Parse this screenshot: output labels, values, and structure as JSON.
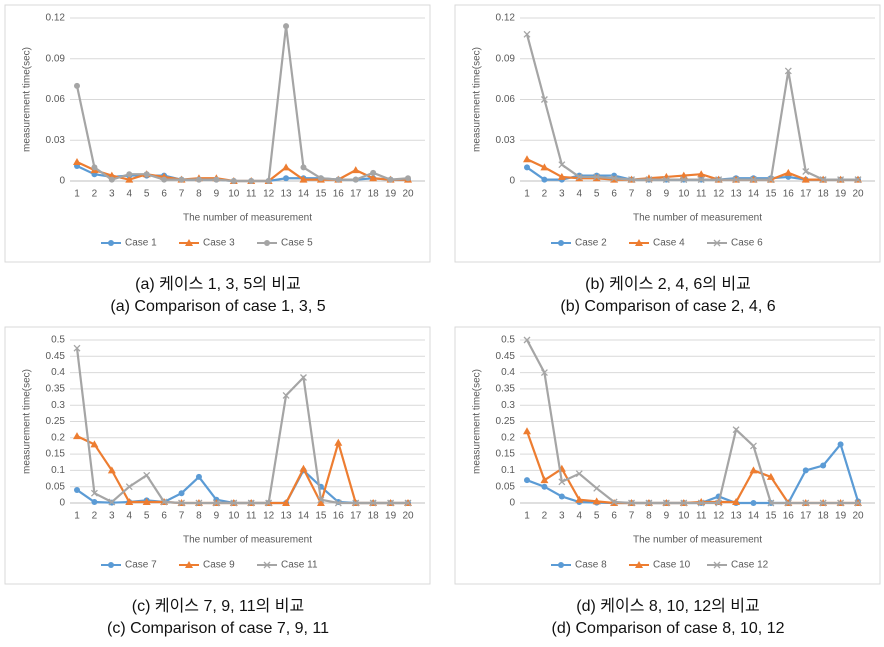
{
  "chart_data": [
    {
      "type": "line",
      "caption_ko": "(a) 케이스 1, 3, 5의 비교",
      "caption_en": "(a) Comparison of case 1, 3, 5",
      "x_label": "The number of measurement",
      "y_label": "measurement time(sec)",
      "categories": [
        1,
        2,
        3,
        4,
        5,
        6,
        7,
        8,
        9,
        10,
        11,
        12,
        13,
        14,
        15,
        16,
        17,
        18,
        19,
        20
      ],
      "ylim": [
        0,
        0.12
      ],
      "yticks": [
        0,
        0.03,
        0.06,
        0.09,
        0.12
      ],
      "grid": true,
      "legend": "bottom",
      "series": [
        {
          "name": "Case 1",
          "color": "#5b9bd5",
          "marker": "circle",
          "values": [
            0.011,
            0.005,
            0.003,
            0.004,
            0.004,
            0.004,
            0.001,
            0.001,
            0.001,
            0,
            0,
            0,
            0.002,
            0.002,
            0.002,
            0.001,
            0.001,
            0.002,
            0.001,
            0.001
          ]
        },
        {
          "name": "Case 3",
          "color": "#ed7d31",
          "marker": "triangle",
          "values": [
            0.014,
            0.008,
            0.004,
            0.001,
            0.005,
            0.003,
            0.001,
            0.002,
            0.002,
            0,
            0,
            0,
            0.01,
            0.001,
            0.001,
            0.001,
            0.008,
            0.002,
            0.001,
            0.001
          ]
        },
        {
          "name": "Case 5",
          "color": "#a5a5a5",
          "marker": "circle",
          "values": [
            0.07,
            0.01,
            0.001,
            0.005,
            0.005,
            0.001,
            0.001,
            0.001,
            0.001,
            0,
            0,
            0,
            0.114,
            0.01,
            0.002,
            0.001,
            0.001,
            0.006,
            0.001,
            0.002
          ]
        }
      ]
    },
    {
      "type": "line",
      "caption_ko": "(b) 케이스 2, 4, 6의 비교",
      "caption_en": "(b) Comparison of case 2, 4, 6",
      "x_label": "The number of measurement",
      "y_label": "measurement time(sec)",
      "categories": [
        1,
        2,
        3,
        4,
        5,
        6,
        7,
        8,
        9,
        10,
        11,
        12,
        13,
        14,
        15,
        16,
        17,
        18,
        19,
        20
      ],
      "ylim": [
        0,
        0.12
      ],
      "yticks": [
        0,
        0.03,
        0.06,
        0.09,
        0.12
      ],
      "grid": true,
      "legend": "bottom",
      "series": [
        {
          "name": "Case 2",
          "color": "#5b9bd5",
          "marker": "circle",
          "values": [
            0.01,
            0.001,
            0.001,
            0.004,
            0.004,
            0.004,
            0.001,
            0.001,
            0.001,
            0.001,
            0.001,
            0.001,
            0.002,
            0.002,
            0.002,
            0.003,
            0.001,
            0.001,
            0.001,
            0.001
          ]
        },
        {
          "name": "Case 4",
          "color": "#ed7d31",
          "marker": "triangle",
          "values": [
            0.016,
            0.01,
            0.003,
            0.002,
            0.002,
            0.001,
            0.001,
            0.002,
            0.003,
            0.004,
            0.005,
            0.001,
            0.001,
            0.001,
            0.001,
            0.006,
            0.001,
            0.001,
            0.001,
            0.001
          ]
        },
        {
          "name": "Case 6",
          "color": "#a5a5a5",
          "marker": "x",
          "values": [
            0.108,
            0.06,
            0.012,
            0.003,
            0.003,
            0.002,
            0.001,
            0.001,
            0.001,
            0.001,
            0.001,
            0.001,
            0.001,
            0.001,
            0.001,
            0.081,
            0.007,
            0.001,
            0.001,
            0.001
          ]
        }
      ]
    },
    {
      "type": "line",
      "caption_ko": "(c) 케이스 7, 9, 11의 비교",
      "caption_en": "(c) Comparison of case 7, 9, 11",
      "x_label": "The number of measurement",
      "y_label": "measurement time(sec)",
      "categories": [
        1,
        2,
        3,
        4,
        5,
        6,
        7,
        8,
        9,
        10,
        11,
        12,
        13,
        14,
        15,
        16,
        17,
        18,
        19,
        20
      ],
      "ylim": [
        0,
        0.5
      ],
      "yticks": [
        0,
        0.05,
        0.1,
        0.15,
        0.2,
        0.25,
        0.3,
        0.35,
        0.4,
        0.45,
        0.5
      ],
      "grid": true,
      "legend": "bottom",
      "series": [
        {
          "name": "Case 7",
          "color": "#5b9bd5",
          "marker": "circle",
          "values": [
            0.04,
            0.003,
            0.001,
            0.003,
            0.008,
            0.003,
            0.03,
            0.08,
            0.01,
            0,
            0,
            0,
            0,
            0.1,
            0.05,
            0.003,
            0,
            0,
            0,
            0
          ]
        },
        {
          "name": "Case 9",
          "color": "#ed7d31",
          "marker": "triangle",
          "values": [
            0.205,
            0.18,
            0.1,
            0.003,
            0.003,
            0.003,
            0,
            0,
            0,
            0,
            0,
            0,
            0,
            0.105,
            0,
            0.185,
            0,
            0,
            0,
            0
          ]
        },
        {
          "name": "Case 11",
          "color": "#a5a5a5",
          "marker": "x",
          "values": [
            0.475,
            0.03,
            0.003,
            0.05,
            0.085,
            0.003,
            0,
            0,
            0,
            0,
            0,
            0,
            0.33,
            0.385,
            0.01,
            0,
            0,
            0,
            0,
            0
          ]
        }
      ]
    },
    {
      "type": "line",
      "caption_ko": "(d) 케이스 8, 10, 12의 비교",
      "caption_en": "(d) Comparison of case 8, 10, 12",
      "x_label": "The number of measurement",
      "y_label": "measurement time(sec)",
      "categories": [
        1,
        2,
        3,
        4,
        5,
        6,
        7,
        8,
        9,
        10,
        11,
        12,
        13,
        14,
        15,
        16,
        17,
        18,
        19,
        20
      ],
      "ylim": [
        0,
        0.5
      ],
      "yticks": [
        0,
        0.05,
        0.1,
        0.15,
        0.2,
        0.25,
        0.3,
        0.35,
        0.4,
        0.45,
        0.5
      ],
      "grid": true,
      "legend": "bottom",
      "series": [
        {
          "name": "Case 8",
          "color": "#5b9bd5",
          "marker": "circle",
          "values": [
            0.07,
            0.05,
            0.02,
            0.003,
            0.001,
            0,
            0,
            0,
            0,
            0,
            0,
            0.02,
            0,
            0,
            0,
            0,
            0.1,
            0.115,
            0.18,
            0.005
          ]
        },
        {
          "name": "Case 10",
          "color": "#ed7d31",
          "marker": "triangle",
          "values": [
            0.22,
            0.07,
            0.105,
            0.01,
            0.005,
            0,
            0,
            0,
            0,
            0,
            0.003,
            0.003,
            0.003,
            0.1,
            0.08,
            0,
            0,
            0,
            0,
            0
          ]
        },
        {
          "name": "Case 12",
          "color": "#a5a5a5",
          "marker": "x",
          "values": [
            0.5,
            0.4,
            0.065,
            0.09,
            0.045,
            0.003,
            0,
            0,
            0,
            0,
            0,
            0,
            0.225,
            0.175,
            0,
            0,
            0,
            0,
            0,
            0
          ]
        }
      ]
    }
  ]
}
